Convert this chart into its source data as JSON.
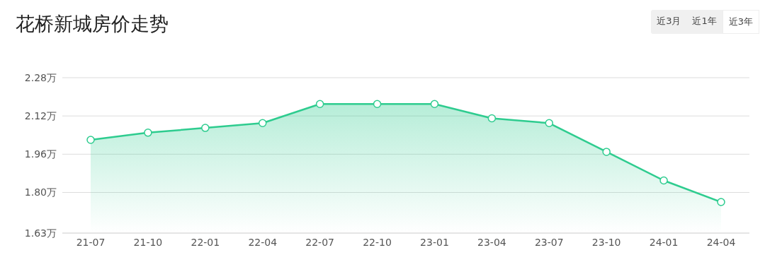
{
  "chart_data": {
    "type": "area",
    "title": "花桥新城房价走势",
    "annotations": [
      "近3月",
      "近1年",
      "近3年"
    ],
    "categories": [
      "21-07",
      "21-10",
      "22-01",
      "22-04",
      "22-07",
      "22-10",
      "23-01",
      "23-04",
      "23-07",
      "23-10",
      "24-01",
      "24-04"
    ],
    "series": [
      {
        "color": "#2ecc8f",
        "values": [
          2.02,
          2.05,
          2.07,
          2.09,
          2.17,
          2.17,
          2.17,
          2.11,
          2.09,
          1.97,
          1.85,
          1.76
        ]
      }
    ],
    "ylim": [
      1.63,
      2.28
    ],
    "yticks": [
      {
        "value": 1.63,
        "label": "1.63万"
      },
      {
        "value": 1.8,
        "label": "1.80万"
      },
      {
        "value": 1.96,
        "label": "1.96万"
      },
      {
        "value": 2.12,
        "label": "2.12万"
      },
      {
        "value": 2.28,
        "label": "2.28万"
      }
    ],
    "grid": "y",
    "marker": "circle",
    "line_style": "solid",
    "legend": false
  }
}
